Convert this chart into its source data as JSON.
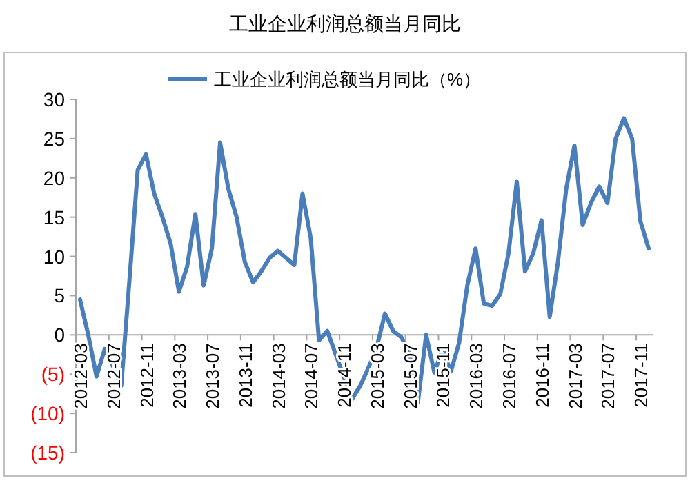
{
  "chart_data": {
    "type": "line",
    "title": "工业企业利润总额当月同比",
    "categories": [
      "2012-03",
      null,
      null,
      null,
      "2012-07",
      null,
      null,
      null,
      "2012-11",
      null,
      null,
      null,
      "2013-03",
      null,
      null,
      null,
      "2013-07",
      null,
      null,
      null,
      "2013-11",
      null,
      null,
      null,
      "2014-03",
      null,
      null,
      null,
      "2014-07",
      null,
      null,
      null,
      "2014-11",
      null,
      null,
      null,
      "2015-03",
      null,
      null,
      null,
      "2015-07",
      null,
      null,
      null,
      "2015-11",
      null,
      null,
      null,
      "2016-03",
      null,
      null,
      null,
      "2016-07",
      null,
      null,
      null,
      "2016-11",
      null,
      null,
      null,
      "2017-03",
      null,
      null,
      null,
      "2017-07",
      null,
      null,
      null,
      "2017-11",
      null
    ],
    "series": [
      {
        "name": "工业企业利润总额当月同比（%）",
        "color": "#4a7ebb",
        "values": [
          4.5,
          0,
          -5.3,
          -1.8,
          -4,
          -6.5,
          7,
          21,
          23,
          18,
          15,
          11.6,
          5.5,
          8.7,
          15.4,
          6.3,
          11,
          24.5,
          18.6,
          15,
          9.3,
          6.7,
          8.1,
          9.8,
          10.7,
          9.8,
          8.9,
          18,
          12.3,
          -0.7,
          0.5,
          -2.4,
          -5.3,
          -8.2,
          -6.5,
          -4.2,
          -1.6,
          2.7,
          0.5,
          -0.3,
          -2.4,
          -8.6,
          0,
          -4.8,
          -1.8,
          -4.7,
          -1,
          6.3,
          11,
          4,
          3.7,
          5.2,
          10.4,
          19.5,
          8.1,
          10.4,
          14.6,
          2.3,
          9.3,
          18.6,
          24.1,
          14,
          16.8,
          18.9,
          16.8,
          25,
          27.6,
          25,
          14.5,
          11
        ]
      }
    ],
    "ylim": [
      -15,
      30
    ],
    "yticks": [
      30,
      25,
      20,
      15,
      10,
      5,
      0,
      {
        "value": -5,
        "label": "(5)"
      },
      {
        "value": -10,
        "label": "(10)"
      },
      {
        "value": -15,
        "label": "(15)"
      }
    ],
    "legend": "top",
    "grid": false,
    "marker": "none",
    "line_style": "solid"
  }
}
